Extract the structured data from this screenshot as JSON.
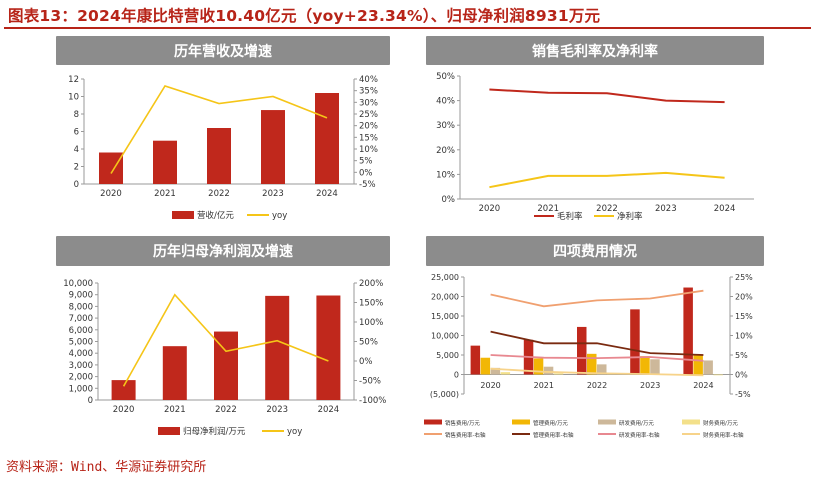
{
  "page": {
    "title": "图表13：2024年康比特营收10.40亿元（yoy+23.34%）、归母净利润8931万元",
    "source": "资料来源：Wind、华源证券研究所"
  },
  "colors": {
    "bar_red": "#c0281c",
    "line_yellow": "#f5c518",
    "header_gray": "#8c8c8c",
    "accent": "#b72418"
  },
  "chart_data": [
    {
      "id": "revenue",
      "type": "bar",
      "title": "历年营收及增速",
      "categories": [
        "2020",
        "2021",
        "2022",
        "2023",
        "2024"
      ],
      "series": [
        {
          "name": "营收/亿元",
          "type": "bar",
          "axis": "left",
          "values": [
            3.6,
            4.95,
            6.4,
            8.45,
            10.4
          ]
        },
        {
          "name": "yoy",
          "type": "line",
          "axis": "right",
          "values": [
            -0.5,
            37.0,
            29.5,
            32.5,
            23.34
          ]
        }
      ],
      "y_left": {
        "min": 0,
        "max": 12,
        "step": 2,
        "ticks": [
          "0",
          "2",
          "4",
          "6",
          "8",
          "10",
          "12"
        ]
      },
      "y_right": {
        "min": -5,
        "max": 40,
        "step": 5,
        "ticks": [
          "-5%",
          "0%",
          "5%",
          "10%",
          "15%",
          "20%",
          "25%",
          "30%",
          "35%",
          "40%"
        ]
      },
      "legend": [
        "营收/亿元",
        "yoy"
      ],
      "legend_position": "bottom",
      "grid": false
    },
    {
      "id": "margin",
      "type": "line",
      "title": "销售毛利率及净利率",
      "categories": [
        "2020",
        "2021",
        "2022",
        "2023",
        "2024"
      ],
      "series": [
        {
          "name": "毛利率",
          "type": "line",
          "axis": "left",
          "values": [
            44.5,
            43.2,
            43.0,
            40.0,
            39.4
          ]
        },
        {
          "name": "净利率",
          "type": "line",
          "axis": "left",
          "values": [
            4.8,
            9.4,
            9.4,
            10.6,
            8.6
          ]
        }
      ],
      "y_left": {
        "min": 0,
        "max": 50,
        "step": 10,
        "ticks": [
          "0%",
          "10%",
          "20%",
          "30%",
          "40%",
          "50%"
        ]
      },
      "legend": [
        "毛利率",
        "净利率"
      ],
      "legend_position": "bottom",
      "grid": false
    },
    {
      "id": "netprofit",
      "type": "bar",
      "title": "历年归母净利润及增速",
      "categories": [
        "2020",
        "2021",
        "2022",
        "2023",
        "2024"
      ],
      "series": [
        {
          "name": "归母净利润/万元",
          "type": "bar",
          "axis": "left",
          "values": [
            1700,
            4600,
            5850,
            8900,
            8931
          ]
        },
        {
          "name": "yoy",
          "type": "line",
          "axis": "right",
          "values": [
            -65,
            170,
            25,
            52,
            0
          ]
        }
      ],
      "y_left": {
        "min": 0,
        "max": 10000,
        "step": 1000,
        "ticks": [
          "0",
          "1,000",
          "2,000",
          "3,000",
          "4,000",
          "5,000",
          "6,000",
          "7,000",
          "8,000",
          "9,000",
          "10,000"
        ]
      },
      "y_right": {
        "min": -100,
        "max": 200,
        "step": 50,
        "ticks": [
          "-100%",
          "-50%",
          "0%",
          "50%",
          "100%",
          "150%",
          "200%"
        ]
      },
      "legend": [
        "归母净利润/万元",
        "yoy"
      ],
      "legend_position": "bottom",
      "grid": false
    },
    {
      "id": "expenses",
      "type": "bar",
      "title": "四项费用情况",
      "categories": [
        "2020",
        "2021",
        "2022",
        "2023",
        "2024"
      ],
      "series": [
        {
          "name": "销售费用/万元",
          "type": "bar",
          "axis": "left",
          "color": "#c0281c",
          "values": [
            7400,
            8900,
            12200,
            16700,
            22300
          ]
        },
        {
          "name": "管理费用/万元",
          "type": "bar",
          "axis": "left",
          "color": "#f2b705",
          "values": [
            4300,
            4100,
            5300,
            4700,
            4900
          ]
        },
        {
          "name": "研发费用/万元",
          "type": "bar",
          "axis": "left",
          "color": "#cdb89a",
          "values": [
            1700,
            2000,
            2600,
            3900,
            3600
          ]
        },
        {
          "name": "财务费用/万元",
          "type": "bar",
          "axis": "left",
          "color": "#f3e08a",
          "values": [
            600,
            300,
            200,
            100,
            -200
          ]
        },
        {
          "name": "销售费用率-右轴",
          "type": "line",
          "axis": "right",
          "color": "#f0a070",
          "values": [
            20.5,
            17.5,
            19.0,
            19.5,
            21.5
          ]
        },
        {
          "name": "管理费用率-右轴",
          "type": "line",
          "axis": "right",
          "color": "#7a2a10",
          "values": [
            11.0,
            8.0,
            8.0,
            5.5,
            5.0
          ]
        },
        {
          "name": "研发费用率-右轴",
          "type": "line",
          "axis": "right",
          "color": "#e88890",
          "values": [
            5.0,
            4.3,
            4.2,
            4.5,
            3.5
          ]
        },
        {
          "name": "财务费用率-右轴",
          "type": "line",
          "axis": "right",
          "color": "#f7d38a",
          "values": [
            1.5,
            0.7,
            0.3,
            0.1,
            -0.2
          ]
        }
      ],
      "y_left": {
        "min": -5000,
        "max": 25000,
        "step": 5000,
        "ticks": [
          "(5,000)",
          "0",
          "5,000",
          "10,000",
          "15,000",
          "20,000",
          "25,000"
        ]
      },
      "y_right": {
        "min": -5,
        "max": 25,
        "step": 5,
        "ticks": [
          "-5%",
          "0%",
          "5%",
          "10%",
          "15%",
          "20%",
          "25%"
        ]
      },
      "legend": [
        "销售费用/万元",
        "管理费用/万元",
        "研发费用/万元",
        "财务费用/万元",
        "销售费用率-右轴",
        "管理费用率-右轴",
        "研发费用率-右轴",
        "财务费用率-右轴"
      ],
      "legend_position": "bottom",
      "grid": false
    }
  ]
}
